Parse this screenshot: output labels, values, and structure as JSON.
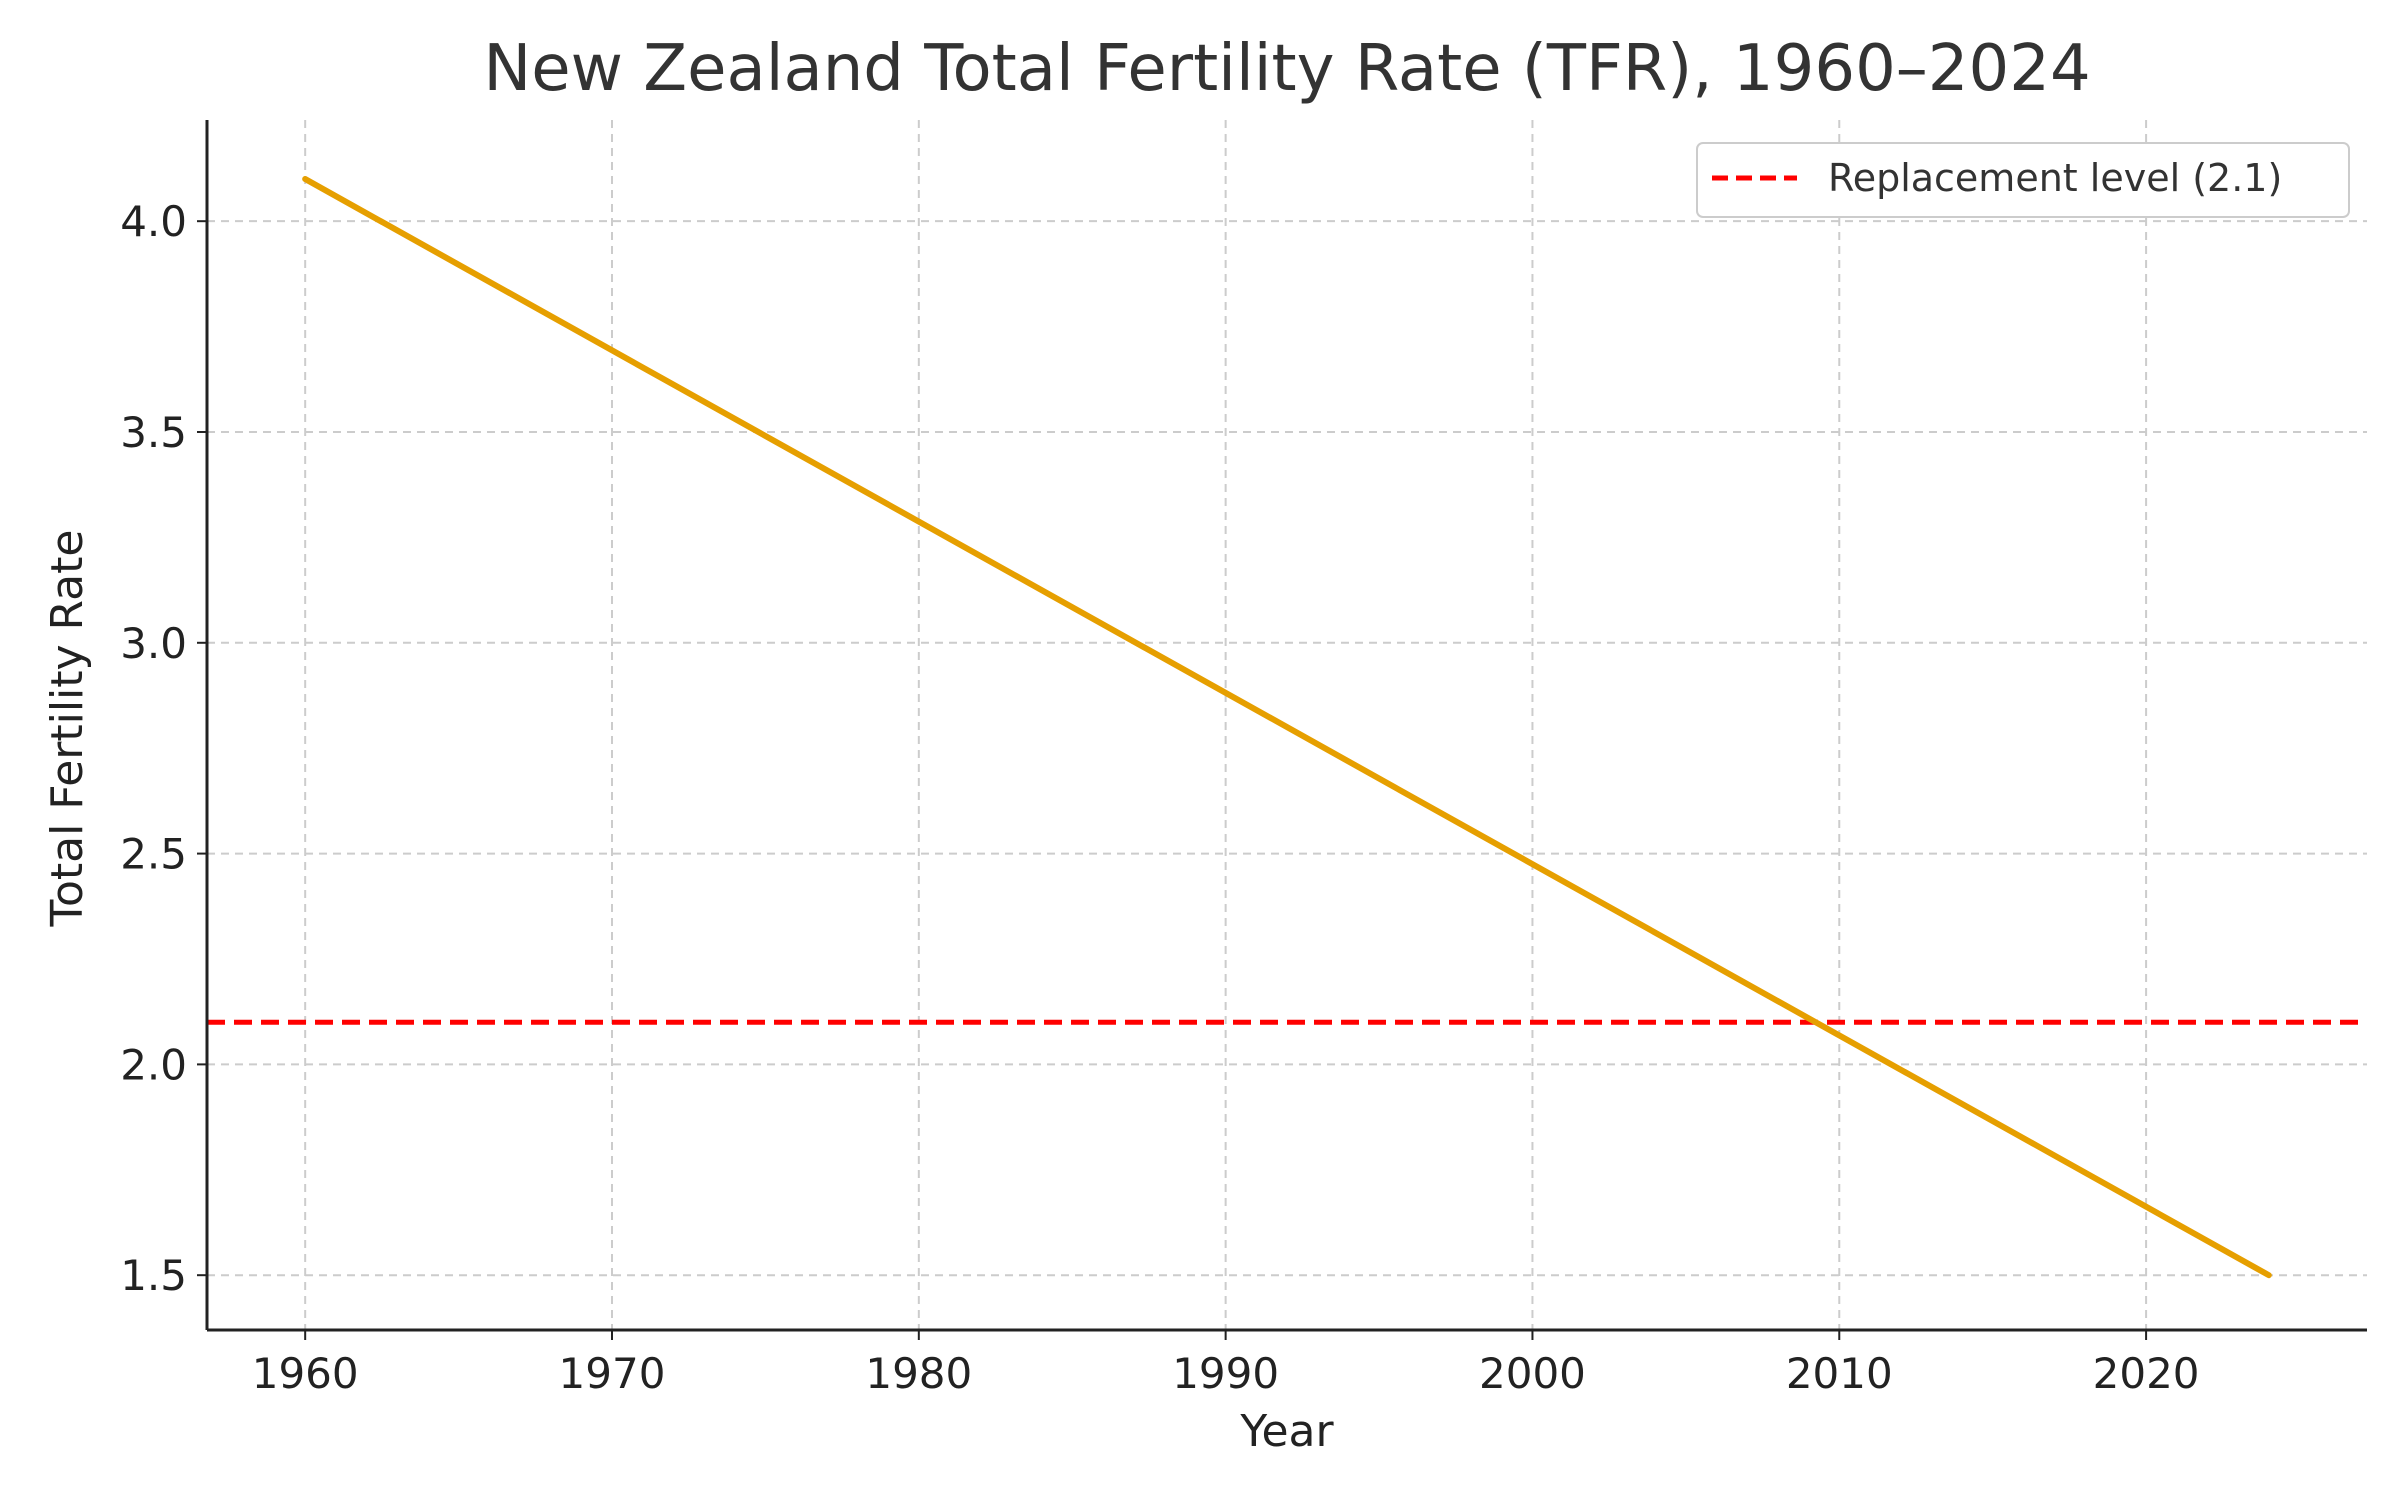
{
  "chart_data": {
    "type": "line",
    "title": "New Zealand Total Fertility Rate (TFR), 1960–2024",
    "xlabel": "Year",
    "ylabel": "Total Fertility Rate",
    "xlim": [
      1956.8,
      2027.2
    ],
    "ylim": [
      1.37,
      4.24
    ],
    "xticks": [
      1960,
      1970,
      1980,
      1990,
      2000,
      2010,
      2020
    ],
    "yticks": [
      1.5,
      2.0,
      2.5,
      3.0,
      3.5,
      4.0
    ],
    "ytick_labels": [
      "1.5",
      "2.0",
      "2.5",
      "3.0",
      "3.5",
      "4.0"
    ],
    "grid": true,
    "legend_position": "top-right",
    "series": [
      {
        "name": "TFR",
        "color": "#E69F00",
        "x": [
          1960,
          2024
        ],
        "y": [
          4.1,
          1.5
        ]
      }
    ],
    "reference_lines": [
      {
        "name": "Replacement level (2.1)",
        "value": 2.1,
        "color": "#FF0000",
        "style": "dashed"
      }
    ]
  }
}
